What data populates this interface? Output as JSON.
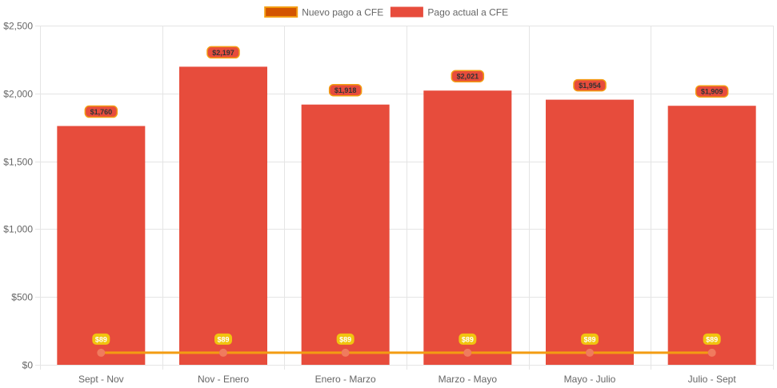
{
  "chart_data": {
    "type": "bar",
    "categories": [
      "Sept - Nov",
      "Nov - Enero",
      "Enero - Marzo",
      "Marzo - Mayo",
      "Mayo - Julio",
      "Julio - Sept"
    ],
    "series": [
      {
        "name": "Nuevo pago a CFE",
        "type": "line",
        "values": [
          89,
          89,
          89,
          89,
          89,
          89
        ],
        "labels": [
          "$89",
          "$89",
          "$89",
          "$89",
          "$89",
          "$89"
        ],
        "color": "#f39c12",
        "point_color": "#f07b5e"
      },
      {
        "name": "Pago actual a CFE",
        "type": "bar",
        "values": [
          1760,
          2197,
          1918,
          2021,
          1954,
          1909
        ],
        "labels": [
          "$1,760",
          "$2,197",
          "$1,918",
          "$2,021",
          "$1,954",
          "$1,909"
        ],
        "color": "#e74c3c"
      }
    ],
    "y_ticks": [
      {
        "value": 0,
        "label": "$0"
      },
      {
        "value": 500,
        "label": "$500"
      },
      {
        "value": 1000,
        "label": "$1,000"
      },
      {
        "value": 1500,
        "label": "$1,500"
      },
      {
        "value": 2000,
        "label": "$2,000"
      },
      {
        "value": 2500,
        "label": "$2,500"
      }
    ],
    "ylim": [
      0,
      2500
    ],
    "grid": true,
    "legend_position": "top-center",
    "colors": {
      "legend_line_swatch": "#d35400",
      "legend_line_border": "#f39c12",
      "line_label_bg": "#f1c40f",
      "bar_label_bg": "#e74c3c",
      "bar_label_border": "#f39c12",
      "grid": "#e5e5e5",
      "axis_text": "#666666"
    }
  }
}
